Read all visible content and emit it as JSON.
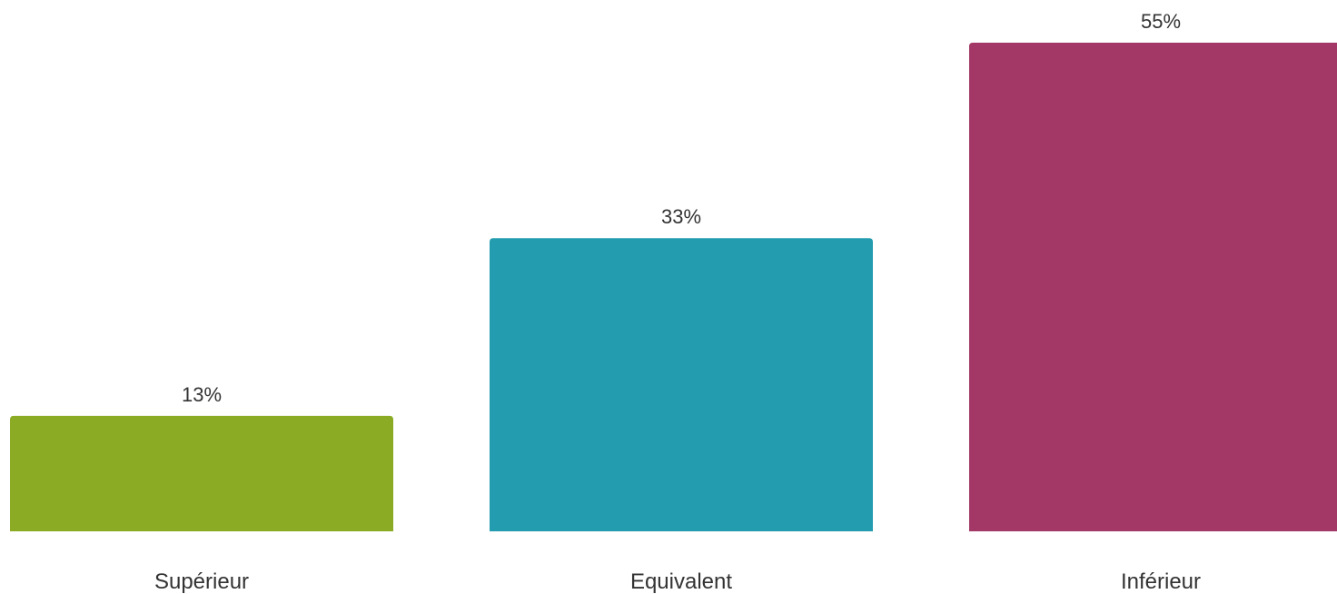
{
  "chart_data": {
    "type": "bar",
    "categories": [
      "Supérieur",
      "Equivalent",
      "Inférieur"
    ],
    "values": [
      13,
      33,
      55
    ],
    "value_labels": [
      "13%",
      "33%",
      "55%"
    ],
    "colors": [
      "#8aab23",
      "#239caf",
      "#a33765"
    ],
    "title": "",
    "xlabel": "",
    "ylabel": "",
    "ylim": [
      0,
      55
    ],
    "grid": false,
    "legend": "none"
  }
}
